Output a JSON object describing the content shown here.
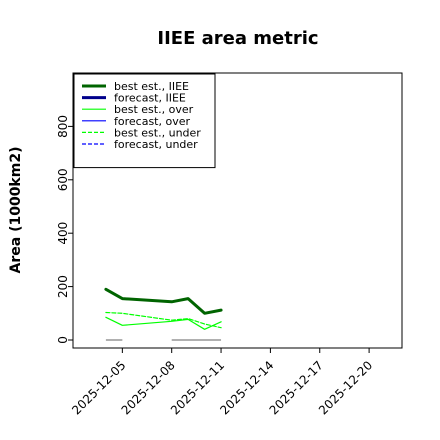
{
  "chart_data": {
    "type": "line",
    "title": "IIEE area metric",
    "xlabel": "",
    "ylabel": "Area (1000km2)",
    "ylim": [
      -30,
      1000
    ],
    "yticks": [
      0,
      200,
      400,
      600,
      800
    ],
    "xlim": [
      "2025-12-02",
      "2025-12-22"
    ],
    "xticks": [
      "2025-12-05",
      "2025-12-08",
      "2025-12-11",
      "2025-12-14",
      "2025-12-17",
      "2025-12-20"
    ],
    "highlighted_xtick": "2025-12-11",
    "highlight_color": "#228b22",
    "grid": false,
    "legend_position": "top-left",
    "series": [
      {
        "name": "best est., IIEE",
        "color": "#006400",
        "style": "solid",
        "width": "thick",
        "x": [
          "2025-12-04",
          "2025-12-05",
          "2025-12-08",
          "2025-12-09",
          "2025-12-10",
          "2025-12-11"
        ],
        "y": [
          190,
          155,
          143,
          155,
          100,
          112
        ]
      },
      {
        "name": "forecast, IIEE",
        "color": "#00008b",
        "style": "solid",
        "width": "thick",
        "x": [],
        "y": []
      },
      {
        "name": "best est., over",
        "color": "#00ff00",
        "style": "solid",
        "width": "thin",
        "x": [
          "2025-12-04",
          "2025-12-05",
          "2025-12-08",
          "2025-12-09",
          "2025-12-10",
          "2025-12-11"
        ],
        "y": [
          85,
          55,
          70,
          77,
          40,
          68
        ]
      },
      {
        "name": "forecast, over",
        "color": "#0000ff",
        "style": "solid",
        "width": "thin",
        "x": [],
        "y": []
      },
      {
        "name": "best est., under",
        "color": "#00ff00",
        "style": "dashed",
        "width": "thin",
        "x": [
          "2025-12-04",
          "2025-12-05",
          "2025-12-08",
          "2025-12-09",
          "2025-12-10",
          "2025-12-11"
        ],
        "y": [
          103,
          100,
          74,
          80,
          60,
          46
        ]
      },
      {
        "name": "forecast, under",
        "color": "#0000ff",
        "style": "dashed",
        "width": "thin",
        "x": [],
        "y": []
      }
    ],
    "reference_segments": [
      {
        "x": [
          "2025-12-04",
          "2025-12-05"
        ],
        "y": 0,
        "color": "#808080"
      },
      {
        "x": [
          "2025-12-08",
          "2025-12-11"
        ],
        "y": 0,
        "color": "#808080"
      }
    ]
  }
}
